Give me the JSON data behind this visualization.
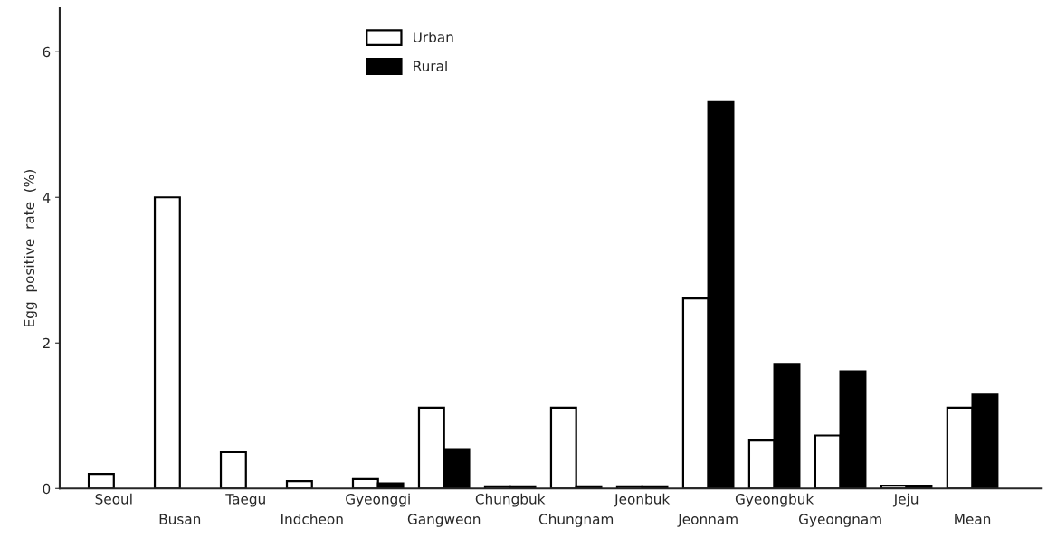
{
  "chart_data": {
    "type": "bar",
    "ylabel": "Egg  positive  rate  (%)",
    "categories": [
      "Seoul",
      "Busan",
      "Taegu",
      "Indcheon",
      "Gyeonggi",
      "Gangweon",
      "Chungbuk",
      "Chungnam",
      "Jeonbuk",
      "Jeonnam",
      "Gyeongbuk",
      "Gyeongnam",
      "Jeju",
      "Mean"
    ],
    "series": [
      {
        "name": "Urban",
        "color": "#ffffff",
        "values": [
          0.2,
          4.0,
          0.5,
          0.1,
          0.13,
          1.11,
          0.03,
          1.11,
          0.03,
          2.61,
          0.66,
          0.73,
          0.04,
          1.11
        ]
      },
      {
        "name": "Rural",
        "color": "#000000",
        "values": [
          null,
          null,
          null,
          null,
          0.07,
          0.53,
          0.03,
          0.03,
          0.03,
          5.31,
          1.7,
          1.61,
          0.04,
          1.29
        ]
      }
    ],
    "ylim": [
      0,
      6.6
    ],
    "yticks": [
      0,
      2,
      4,
      6
    ],
    "grid": false,
    "legend": "top"
  }
}
